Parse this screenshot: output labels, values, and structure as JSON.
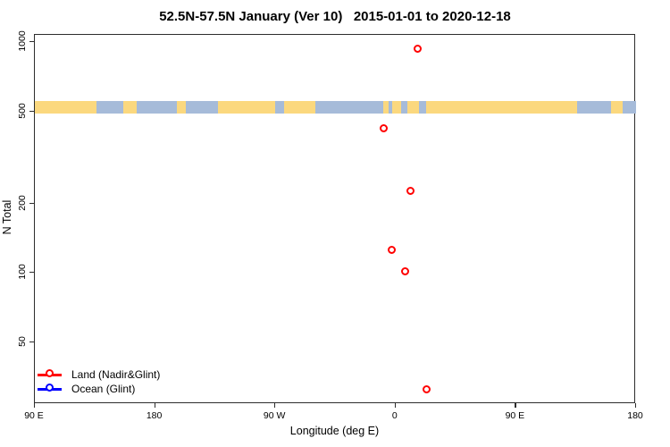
{
  "chart_data": {
    "type": "scatter",
    "title": "52.5N-57.5N January (Ver 10)   2015-01-01 to 2020-12-18",
    "xlabel": "Longitude (deg E)",
    "ylabel": "N Total",
    "x_scale": "linear-longitude-wrapped",
    "y_scale": "log",
    "xlim": [
      90,
      540
    ],
    "ylim": [
      27,
      1075
    ],
    "grid": "off",
    "x_ticks": [
      {
        "value": 90,
        "label": "90 E"
      },
      {
        "value": 180,
        "label": "180"
      },
      {
        "value": 270,
        "label": "90 W"
      },
      {
        "value": 360,
        "label": "0"
      },
      {
        "value": 450,
        "label": "90 E"
      },
      {
        "value": 540,
        "label": "180"
      }
    ],
    "y_ticks": [
      {
        "value": 1000,
        "label": "1000"
      },
      {
        "value": 500,
        "label": "500"
      },
      {
        "value": 200,
        "label": "200"
      },
      {
        "value": 100,
        "label": "100"
      },
      {
        "value": 50,
        "label": "50"
      }
    ],
    "series": [
      {
        "name": "Land (Nadir&Glint)",
        "color": "#FF0000",
        "marker": "open-circle",
        "points": [
          {
            "x": 377.0,
            "lon_deg_east": 17.0,
            "n": 930
          },
          {
            "x": 351.6,
            "lon_deg_east": -8.4,
            "n": 420
          },
          {
            "x": 371.6,
            "lon_deg_east": 11.6,
            "n": 226
          },
          {
            "x": 357.6,
            "lon_deg_east": -2.4,
            "n": 125
          },
          {
            "x": 367.6,
            "lon_deg_east": 7.6,
            "n": 101
          },
          {
            "x": 383.7,
            "lon_deg_east": 23.7,
            "n": 31
          }
        ]
      },
      {
        "name": "Ocean (Glint)",
        "color": "#0000FF",
        "marker": "open-circle",
        "points": []
      }
    ],
    "map_band": {
      "description": "land/ocean strip for latitude band 52.5N-57.5N drawn across the plot",
      "y_range": [
        490,
        555
      ],
      "land_color": "#FBD87E",
      "ocean_color": "#A6BBD9",
      "segments": [
        {
          "from": 90.0,
          "to": 136.2,
          "type": "land"
        },
        {
          "from": 136.2,
          "to": 156.2,
          "type": "ocean"
        },
        {
          "from": 156.2,
          "to": 166.3,
          "type": "land"
        },
        {
          "from": 166.3,
          "to": 196.4,
          "type": "ocean"
        },
        {
          "from": 196.4,
          "to": 203.1,
          "type": "land"
        },
        {
          "from": 203.1,
          "to": 227.1,
          "type": "ocean"
        },
        {
          "from": 227.1,
          "to": 270.0,
          "type": "land"
        },
        {
          "from": 270.0,
          "to": 276.6,
          "type": "ocean"
        },
        {
          "from": 276.6,
          "to": 300.1,
          "type": "land"
        },
        {
          "from": 300.1,
          "to": 350.9,
          "type": "ocean"
        },
        {
          "from": 350.9,
          "to": 354.9,
          "type": "land"
        },
        {
          "from": 354.9,
          "to": 357.6,
          "type": "ocean"
        },
        {
          "from": 357.6,
          "to": 364.3,
          "type": "land"
        },
        {
          "from": 364.3,
          "to": 369.0,
          "type": "ocean"
        },
        {
          "from": 369.0,
          "to": 377.7,
          "type": "land"
        },
        {
          "from": 377.7,
          "to": 383.0,
          "type": "ocean"
        },
        {
          "from": 383.0,
          "to": 496.0,
          "type": "land"
        },
        {
          "from": 496.0,
          "to": 521.4,
          "type": "ocean"
        },
        {
          "from": 521.4,
          "to": 530.1,
          "type": "land"
        },
        {
          "from": 530.1,
          "to": 540.0,
          "type": "ocean"
        }
      ]
    },
    "legend": {
      "position": "bottom-left",
      "entries": [
        {
          "label": "Land (Nadir&Glint)",
          "color": "#FF0000"
        },
        {
          "label": "Ocean (Glint)",
          "color": "#0000FF"
        }
      ]
    }
  }
}
